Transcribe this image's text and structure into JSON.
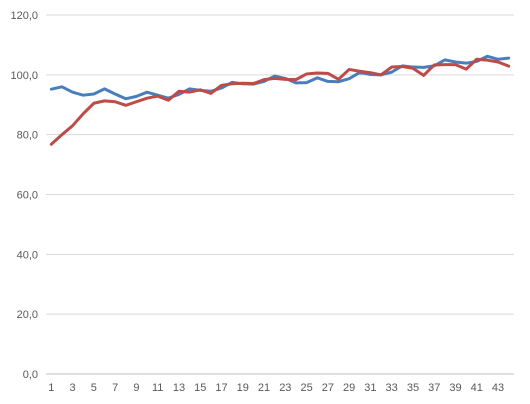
{
  "chart_data": {
    "type": "line",
    "x": [
      1,
      2,
      3,
      4,
      5,
      6,
      7,
      8,
      9,
      10,
      11,
      12,
      13,
      14,
      15,
      16,
      17,
      18,
      19,
      20,
      21,
      22,
      23,
      24,
      25,
      26,
      27,
      28,
      29,
      30,
      31,
      32,
      33,
      34,
      35,
      36,
      37,
      38,
      39,
      40,
      41,
      42,
      43,
      44
    ],
    "xtick_labels": [
      "1",
      "3",
      "5",
      "7",
      "9",
      "11",
      "13",
      "15",
      "17",
      "19",
      "21",
      "23",
      "25",
      "27",
      "29",
      "31",
      "33",
      "35",
      "37",
      "39",
      "41",
      "43"
    ],
    "ylim": [
      0,
      120
    ],
    "ytick_labels": [
      "0,0",
      "20,0",
      "40,0",
      "60,0",
      "80,0",
      "100,0",
      "120,0"
    ],
    "grid": true,
    "legend": "none",
    "series": [
      {
        "color": "#4a7ebb",
        "values": [
          95.2,
          96.0,
          94.2,
          93.2,
          93.6,
          95.3,
          93.6,
          92.0,
          92.8,
          94.2,
          93.2,
          92.2,
          93.5,
          95.3,
          94.8,
          94.5,
          95.6,
          97.5,
          97.0,
          96.9,
          97.8,
          99.6,
          98.8,
          97.3,
          97.4,
          99.0,
          97.8,
          97.7,
          98.7,
          100.8,
          100.1,
          100.0,
          100.9,
          103.0,
          102.6,
          102.5,
          103.0,
          105.0,
          104.3,
          103.9,
          104.5,
          106.2,
          105.2,
          105.6
        ]
      },
      {
        "color": "#be4b48",
        "values": [
          76.8,
          80.0,
          83.0,
          87.0,
          90.5,
          91.3,
          91.0,
          89.8,
          91.0,
          92.2,
          92.9,
          91.5,
          94.5,
          94.2,
          95.0,
          93.8,
          96.5,
          97.0,
          97.2,
          97.1,
          98.4,
          98.8,
          98.5,
          98.4,
          100.3,
          100.6,
          100.5,
          98.5,
          101.8,
          101.2,
          100.7,
          100.0,
          102.6,
          102.8,
          102.2,
          99.8,
          103.3,
          103.4,
          103.4,
          101.9,
          105.2,
          104.9,
          104.3,
          102.9
        ]
      }
    ]
  }
}
